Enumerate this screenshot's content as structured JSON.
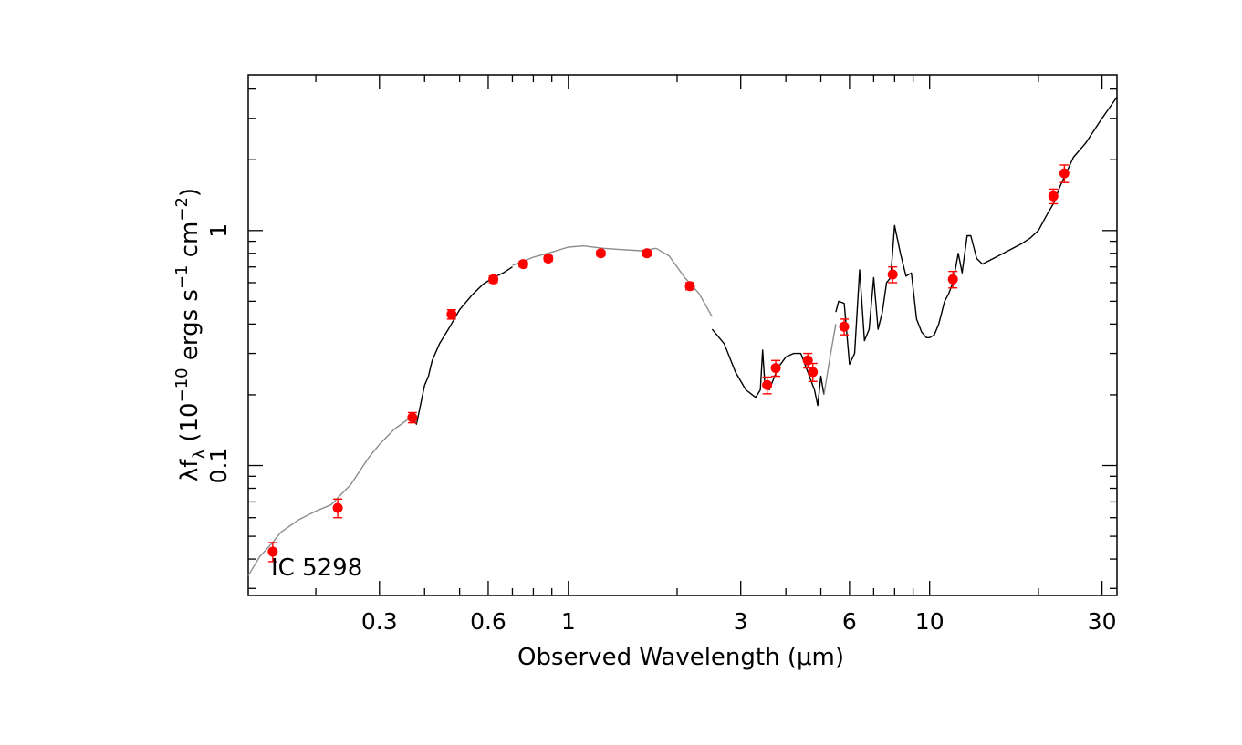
{
  "chart_data": {
    "type": "scatter",
    "annotation": "IC 5298",
    "xlabel": "Observed Wavelength (μm)",
    "ylabel": {
      "base": "λf",
      "base_sub": "λ",
      "open": " (10",
      "exp": "−10",
      "mid": " ergs s",
      "exp2": "−1",
      "mid2": " cm",
      "exp3": "−2",
      "close": ")"
    },
    "x_scale": "log",
    "y_scale": "log",
    "xlim": [
      0.13,
      33
    ],
    "ylim": [
      0.028,
      4.6
    ],
    "x_ticks": [
      {
        "value": 0.3,
        "label": "0.3"
      },
      {
        "value": 0.6,
        "label": "0.6"
      },
      {
        "value": 1,
        "label": "1"
      },
      {
        "value": 3,
        "label": "3"
      },
      {
        "value": 6,
        "label": "6"
      },
      {
        "value": 10,
        "label": "10"
      },
      {
        "value": 30,
        "label": "30"
      }
    ],
    "y_ticks": [
      {
        "value": 0.1,
        "label": "0.1"
      },
      {
        "value": 1,
        "label": "1"
      }
    ],
    "grid": false,
    "series": [
      {
        "style": "gray line",
        "color": "#8c8c8c",
        "x": [
          0.13,
          0.14,
          0.15,
          0.16,
          0.18,
          0.2,
          0.22,
          0.25,
          0.28,
          0.3,
          0.33,
          0.37
        ],
        "y": [
          0.034,
          0.041,
          0.046,
          0.052,
          0.059,
          0.064,
          0.068,
          0.083,
          0.108,
          0.123,
          0.143,
          0.162
        ]
      },
      {
        "style": "black line",
        "color": "#000000",
        "x": [
          0.37,
          0.38,
          0.4,
          0.41,
          0.42,
          0.44,
          0.47,
          0.5,
          0.54,
          0.58,
          0.62,
          0.66,
          0.7
        ],
        "y": [
          0.16,
          0.15,
          0.22,
          0.24,
          0.28,
          0.33,
          0.39,
          0.46,
          0.53,
          0.59,
          0.63,
          0.66,
          0.7
        ]
      },
      {
        "style": "gray line",
        "color": "#8c8c8c",
        "x": [
          0.7,
          0.8,
          0.9,
          1.0,
          1.1,
          1.25,
          1.4,
          1.6,
          1.75,
          1.9,
          2.1,
          2.3,
          2.5
        ],
        "y": [
          0.71,
          0.77,
          0.81,
          0.85,
          0.86,
          0.84,
          0.83,
          0.82,
          0.84,
          0.78,
          0.63,
          0.54,
          0.43
        ]
      },
      {
        "style": "black line",
        "color": "#000000",
        "x": [
          2.5,
          2.7,
          2.9,
          3.1,
          3.3,
          3.4,
          3.45,
          3.5,
          3.6,
          3.8,
          4.0,
          4.2,
          4.4,
          4.6,
          4.8,
          4.9,
          5.0,
          5.1
        ],
        "y": [
          0.38,
          0.33,
          0.25,
          0.21,
          0.195,
          0.21,
          0.31,
          0.22,
          0.21,
          0.26,
          0.29,
          0.3,
          0.3,
          0.25,
          0.21,
          0.18,
          0.24,
          0.2
        ]
      },
      {
        "style": "gray line",
        "color": "#8c8c8c",
        "x": [
          5.1,
          5.3,
          5.5
        ],
        "y": [
          0.2,
          0.29,
          0.4
        ]
      },
      {
        "style": "black line",
        "color": "#000000",
        "x": [
          5.5,
          5.6,
          5.8,
          6.0,
          6.2,
          6.4,
          6.6,
          6.8,
          7.0,
          7.2,
          7.4,
          7.6,
          7.8,
          8.0,
          8.3,
          8.6,
          8.9,
          9.2,
          9.5,
          9.8,
          10.0,
          10.3,
          10.6,
          11.0,
          11.3,
          11.6,
          12.0,
          12.3,
          12.7,
          13.0,
          13.5,
          14.0,
          15.0,
          16.0,
          17.0,
          18.0,
          19.0,
          20.0,
          21.0,
          22.0,
          23.0,
          25.0,
          27.0,
          30.0,
          33.0
        ],
        "y": [
          0.45,
          0.5,
          0.49,
          0.27,
          0.3,
          0.68,
          0.34,
          0.38,
          0.63,
          0.38,
          0.45,
          0.6,
          0.63,
          1.05,
          0.8,
          0.64,
          0.66,
          0.42,
          0.37,
          0.35,
          0.35,
          0.36,
          0.4,
          0.5,
          0.54,
          0.6,
          0.8,
          0.66,
          0.95,
          0.95,
          0.76,
          0.72,
          0.76,
          0.8,
          0.84,
          0.88,
          0.93,
          1.0,
          1.15,
          1.3,
          1.55,
          2.05,
          2.35,
          3.0,
          3.7
        ]
      }
    ],
    "points": {
      "color": "#ff0000",
      "x": [
        0.152,
        0.23,
        0.37,
        0.475,
        0.62,
        0.75,
        0.88,
        1.23,
        1.65,
        2.17,
        3.55,
        3.75,
        4.6,
        4.75,
        5.8,
        7.9,
        11.6,
        22.0,
        23.6
      ],
      "y": [
        0.043,
        0.066,
        0.16,
        0.44,
        0.62,
        0.72,
        0.76,
        0.8,
        0.8,
        0.58,
        0.22,
        0.26,
        0.28,
        0.25,
        0.39,
        0.65,
        0.62,
        1.4,
        1.75
      ],
      "yerr": [
        0.004,
        0.006,
        0.008,
        0.02,
        0.02,
        0.02,
        0.02,
        0.02,
        0.02,
        0.02,
        0.018,
        0.02,
        0.02,
        0.022,
        0.03,
        0.05,
        0.05,
        0.1,
        0.15
      ]
    }
  }
}
